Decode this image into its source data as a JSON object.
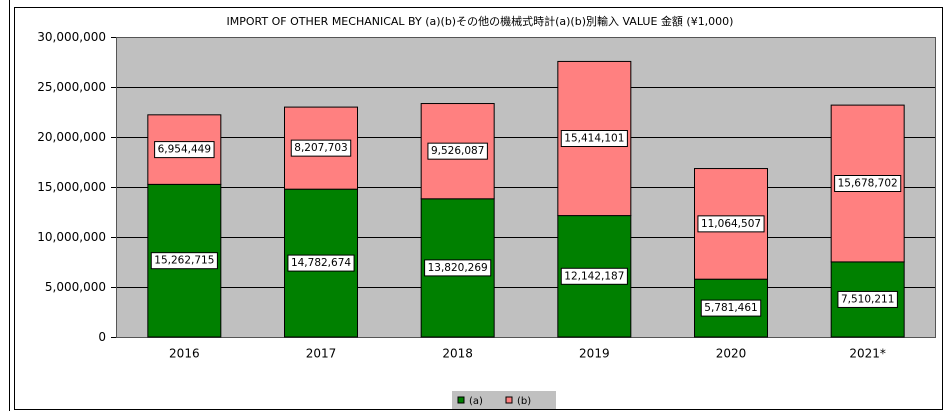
{
  "chart_data": {
    "type": "bar",
    "stacked": true,
    "title": "IMPORT OF OTHER MECHANICAL BY (a)(b)その他の機械式時計(a)(b)別輸入 VALUE 金額 (¥1,000)",
    "categories": [
      "2016",
      "2017",
      "2018",
      "2019",
      "2020",
      "2021*"
    ],
    "series": [
      {
        "name": "(a)",
        "color": "#008000",
        "values": [
          15262715,
          14782674,
          13820269,
          12142187,
          5781461,
          7510211
        ],
        "value_labels": [
          "15,262,715",
          "14,782,674",
          "13,820,269",
          "12,142,187",
          "5,781,461",
          "7,510,211"
        ]
      },
      {
        "name": "(b)",
        "color": "#ff8080",
        "values": [
          6954449,
          8207703,
          9526087,
          15414101,
          11064507,
          15678702
        ],
        "value_labels": [
          "6,954,449",
          "8,207,703",
          "9,526,087",
          "15,414,101",
          "11,064,507",
          "15,678,702"
        ]
      }
    ],
    "ylim": [
      0,
      30000000
    ],
    "yticks": [
      0,
      {
        "value": 5000000,
        "label": "5,000,000"
      },
      {
        "value": 10000000,
        "label": "10,000,000"
      },
      {
        "value": 15000000,
        "label": "15,000,000"
      },
      {
        "value": 20000000,
        "label": "20,000,000"
      },
      {
        "value": 25000000,
        "label": "25,000,000"
      },
      {
        "value": 30000000,
        "label": "30,000,000"
      }
    ],
    "grid": true,
    "legend": "bottom",
    "plot_background": "#c0c0c0"
  }
}
